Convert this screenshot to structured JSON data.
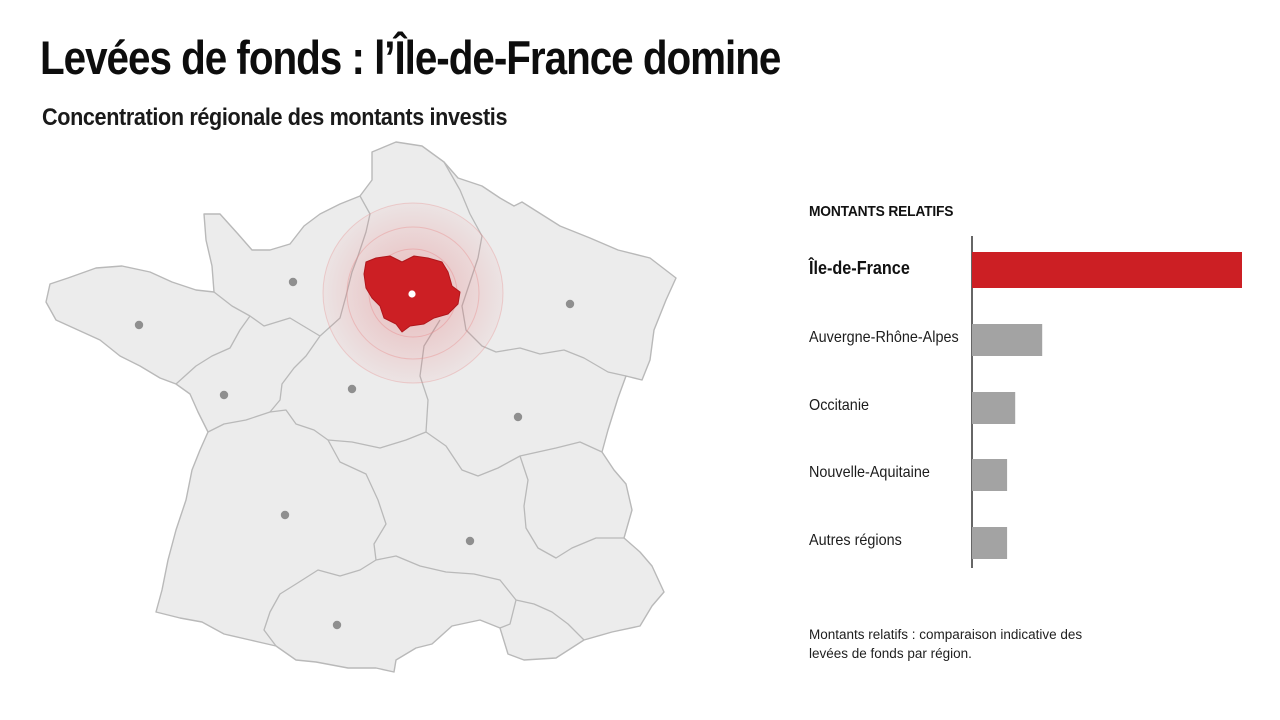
{
  "header": {
    "title": "Levées de fonds : l’Île-de-France domine",
    "subtitle": "Concentration régionale des montants investis"
  },
  "map": {
    "highlighted_region": "Île-de-France",
    "colors": {
      "region_fill": "#ececec",
      "region_stroke": "#b9b9b9",
      "highlight": "#cc1f24",
      "halo": "#e23b3f",
      "marker": "#8f8f8f"
    }
  },
  "panel": {
    "title": "MONTANTS RELATIFS",
    "note": "Montants relatifs : comparaison indicative des levées de fonds par région."
  },
  "chart_data": {
    "type": "bar",
    "orientation": "horizontal",
    "title": "MONTANTS RELATIFS",
    "categories": [
      "Île-de-France",
      "Auvergne-Rhône-Alpes",
      "Occitanie",
      "Nouvelle-Aquitaine",
      "Autres régions"
    ],
    "values": [
      100,
      26,
      16,
      13,
      13
    ],
    "xlim": [
      0,
      100
    ],
    "colors": [
      "#cc1f24",
      "#a3a3a3",
      "#a3a3a3",
      "#a3a3a3",
      "#a3a3a3"
    ],
    "axis_labels_shown": false,
    "grid": false
  }
}
